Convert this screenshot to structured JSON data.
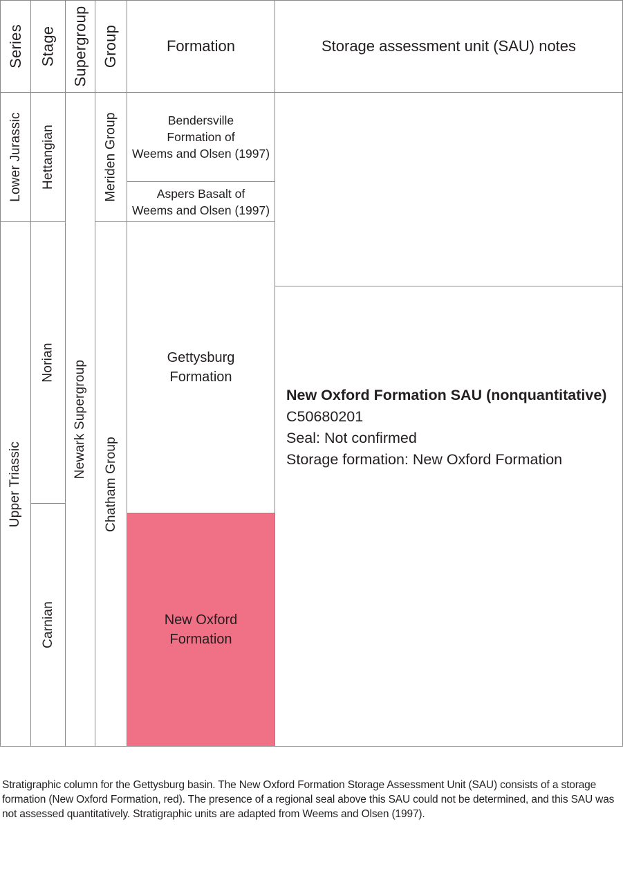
{
  "headers": {
    "series": "Series",
    "stage": "Stage",
    "supergroup": "Supergroup",
    "group": "Group",
    "formation": "Formation",
    "notes": "Storage assessment unit (SAU) notes"
  },
  "series": [
    "Lower Jurassic",
    "Upper Triassic"
  ],
  "stages": [
    "Hettangian",
    "Norian",
    "Carnian"
  ],
  "supergroup": "Newark Supergroup",
  "groups": [
    "Meriden Group",
    "Chatham Group"
  ],
  "formations": {
    "bendersville": [
      "Bendersville",
      "Formation of",
      "Weems and Olsen (1997)"
    ],
    "aspers": [
      "Aspers Basalt of",
      "Weems and Olsen (1997)"
    ],
    "gettysburg": [
      "Gettysburg",
      "Formation"
    ],
    "new_oxford": [
      "New Oxford",
      "Formation"
    ]
  },
  "colors": {
    "storage_formation": "#f07186",
    "grid_line": "#8a8a8a"
  },
  "sau": {
    "title": "New Oxford Formation SAU (nonquantitative)",
    "code": "C50680201",
    "seal": "Seal: Not confirmed",
    "storage_formation": "Storage formation: New Oxford Formation"
  },
  "caption": "Stratigraphic column for the Gettysburg basin. The New Oxford Formation Storage Assessment Unit (SAU) consists of a storage formation (New Oxford Formation, red). The presence of a regional seal above this SAU could not be determined, and this SAU was not assessed quantitatively. Stratigraphic units are adapted from Weems and Olsen (1997)."
}
